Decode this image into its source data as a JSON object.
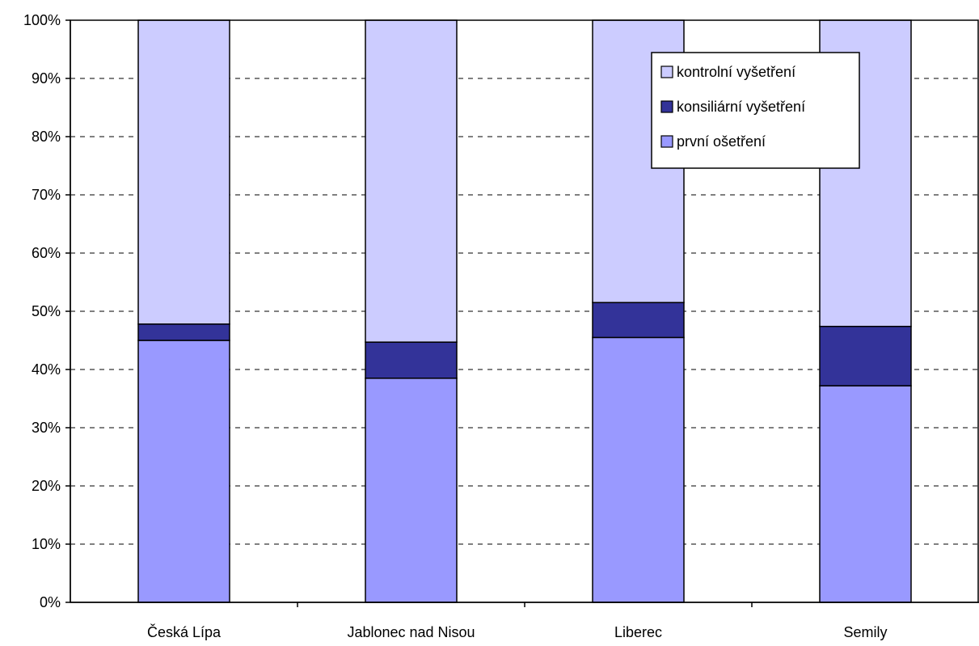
{
  "chart_data": {
    "type": "bar",
    "stacked": true,
    "percent_stacked": true,
    "title": "",
    "xlabel": "",
    "ylabel": "",
    "categories": [
      "Česká Lípa",
      "Jablonec nad Nisou",
      "Liberec",
      "Semily"
    ],
    "series": [
      {
        "name": "první ošetření",
        "values": [
          45.0,
          38.5,
          45.5,
          37.2
        ],
        "color": "#9999ff"
      },
      {
        "name": "konsiliární vyšetření",
        "values": [
          2.8,
          6.2,
          6.0,
          10.2
        ],
        "color": "#333399"
      },
      {
        "name": "kontrolní vyšetření",
        "values": [
          52.2,
          55.3,
          48.5,
          52.6
        ],
        "color": "#ccccff"
      }
    ],
    "ylim": [
      0,
      100
    ],
    "yticks": [
      "0%",
      "10%",
      "20%",
      "30%",
      "40%",
      "50%",
      "60%",
      "70%",
      "80%",
      "90%",
      "100%"
    ],
    "grid": true,
    "legend_position": "top-right"
  }
}
